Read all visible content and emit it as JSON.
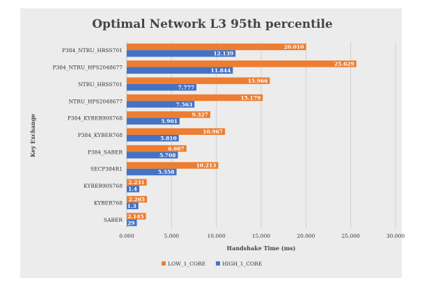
{
  "chart_data": {
    "type": "bar",
    "orientation": "horizontal",
    "title": "Optimal Network L3 95th percentile",
    "xlabel": "Handshake Time (ms)",
    "ylabel": "Key Exchange",
    "xlim": [
      0,
      30
    ],
    "x_ticks": [
      "0.000",
      "5.000",
      "10.000",
      "15.000",
      "20.000",
      "25.000",
      "30.000"
    ],
    "grid": "vertical",
    "legend_position": "bottom",
    "categories": [
      "P384_NTRU_HRSS701",
      "P384_NTRU_HPS2048677",
      "NTRU_HRSS701",
      "NTRU_HPS2048677",
      "P384_KYBER90S768",
      "P384_KYBER768",
      "P384_SABER",
      "SECP384R1",
      "KYBER90S768",
      "KYBER768",
      "SABER"
    ],
    "series": [
      {
        "name": "LOW_1_CORE",
        "color": "#ed7d31",
        "values": [
          20.01,
          25.629,
          15.966,
          15.179,
          9.327,
          10.967,
          6.667,
          10.213,
          2.231,
          2.265,
          2.145
        ],
        "labels": [
          "20.010",
          "25.629",
          "15.966",
          "15.179",
          "9.327",
          "10.967",
          "6.667",
          "10.213",
          "2.231",
          "2.265",
          "2.145"
        ]
      },
      {
        "name": "HIGH_1_CORE",
        "color": "#4472c4",
        "values": [
          12.139,
          11.844,
          7.777,
          7.563,
          5.901,
          5.81,
          5.708,
          5.558,
          1.4,
          1.3,
          1.129
        ],
        "labels": [
          "12.139",
          "11.844",
          "7.777",
          "7.563",
          "5.901",
          "5.810",
          "5.708",
          "5.558",
          "1.4",
          "1.3",
          "1.129"
        ]
      }
    ]
  }
}
